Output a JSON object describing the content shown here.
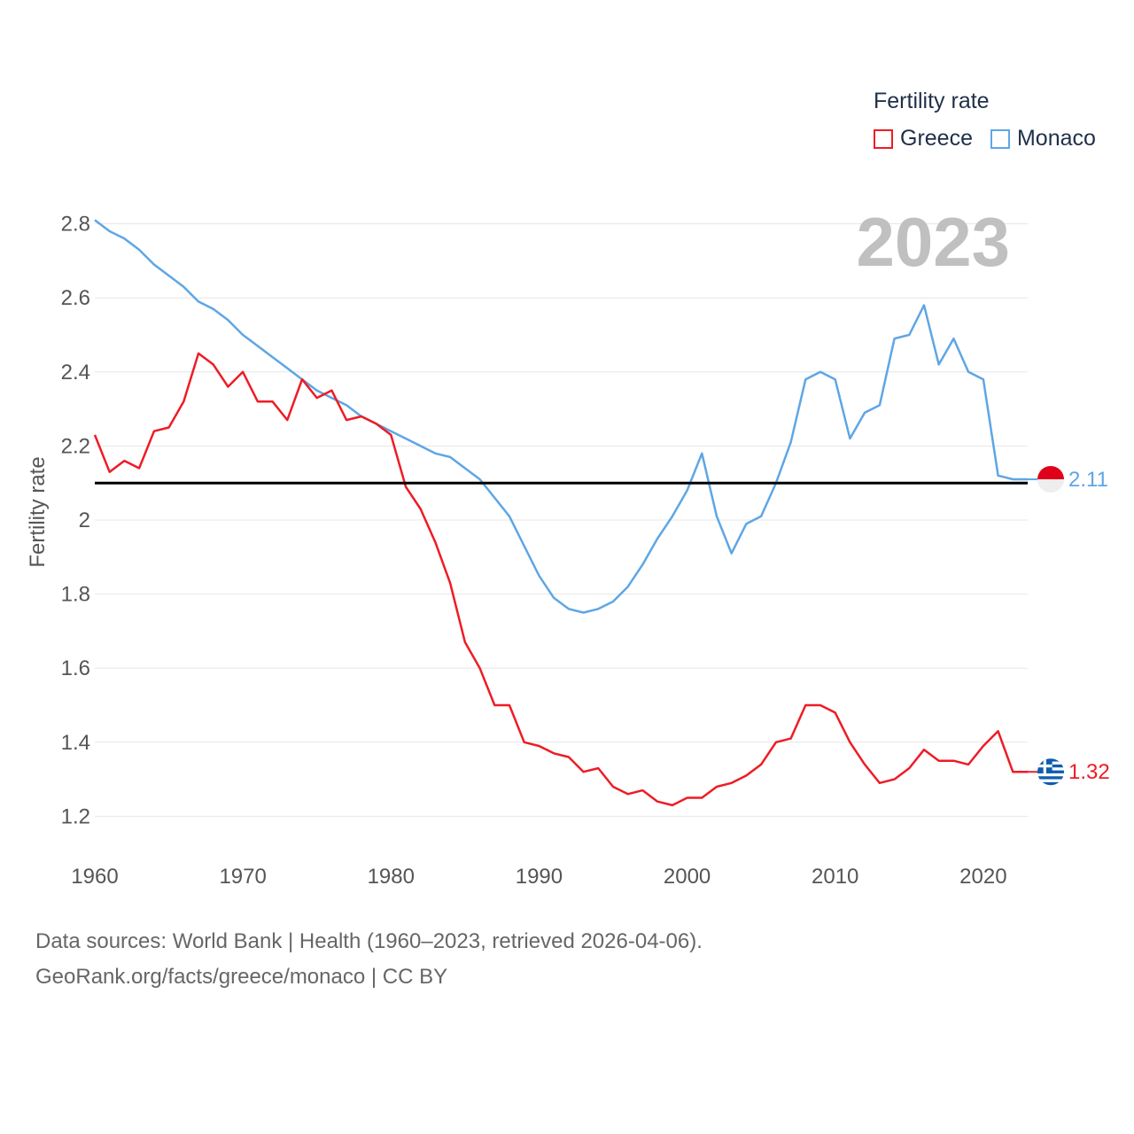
{
  "legend": {
    "title": "Fertility rate",
    "items": [
      {
        "label": "Greece",
        "color": "#ee1c25"
      },
      {
        "label": "Monaco",
        "color": "#5ea6e5"
      }
    ]
  },
  "footer": {
    "line1": "Data sources: World Bank | Health (1960–2023, retrieved 2026-04-06).",
    "line2": "GeoRank.org/facts/greece/monaco | CC BY"
  },
  "chart_data": {
    "type": "line",
    "title": "Fertility rate",
    "year_label": "2023",
    "xlabel": "",
    "ylabel": "Fertility rate",
    "xlim": [
      1960,
      2023
    ],
    "ylim": [
      1.1,
      2.85
    ],
    "x_ticks": [
      1960,
      1970,
      1980,
      1990,
      2000,
      2010,
      2020
    ],
    "y_ticks": [
      1.2,
      1.4,
      1.6,
      1.8,
      2,
      2.2,
      2.4,
      2.6,
      2.8
    ],
    "y_tick_labels": [
      "1.2",
      "1.4",
      "1.6",
      "1.8",
      "2",
      "2.2",
      "2.4",
      "2.6",
      "2.8"
    ],
    "reference_line": {
      "y": 2.1,
      "color": "#000000"
    },
    "x": [
      1960,
      1961,
      1962,
      1963,
      1964,
      1965,
      1966,
      1967,
      1968,
      1969,
      1970,
      1971,
      1972,
      1973,
      1974,
      1975,
      1976,
      1977,
      1978,
      1979,
      1980,
      1981,
      1982,
      1983,
      1984,
      1985,
      1986,
      1987,
      1988,
      1989,
      1990,
      1991,
      1992,
      1993,
      1994,
      1995,
      1996,
      1997,
      1998,
      1999,
      2000,
      2001,
      2002,
      2003,
      2004,
      2005,
      2006,
      2007,
      2008,
      2009,
      2010,
      2011,
      2012,
      2013,
      2014,
      2015,
      2016,
      2017,
      2018,
      2019,
      2020,
      2021,
      2022,
      2023
    ],
    "series": [
      {
        "name": "Greece",
        "color": "#ee1c25",
        "end_label": "1.32",
        "flag": "greece",
        "values": [
          2.23,
          2.13,
          2.16,
          2.14,
          2.24,
          2.25,
          2.32,
          2.45,
          2.42,
          2.36,
          2.4,
          2.32,
          2.32,
          2.27,
          2.38,
          2.33,
          2.35,
          2.27,
          2.28,
          2.26,
          2.23,
          2.09,
          2.03,
          1.94,
          1.83,
          1.67,
          1.6,
          1.5,
          1.5,
          1.4,
          1.39,
          1.37,
          1.36,
          1.32,
          1.33,
          1.28,
          1.26,
          1.27,
          1.24,
          1.23,
          1.25,
          1.25,
          1.28,
          1.29,
          1.31,
          1.34,
          1.4,
          1.41,
          1.5,
          1.5,
          1.48,
          1.4,
          1.34,
          1.29,
          1.3,
          1.33,
          1.38,
          1.35,
          1.35,
          1.34,
          1.39,
          1.43,
          1.32,
          1.32
        ]
      },
      {
        "name": "Monaco",
        "color": "#5ea6e5",
        "end_label": "2.11",
        "flag": "monaco",
        "values": [
          2.81,
          2.78,
          2.76,
          2.73,
          2.69,
          2.66,
          2.63,
          2.59,
          2.57,
          2.54,
          2.5,
          2.47,
          2.44,
          2.41,
          2.38,
          2.35,
          2.33,
          2.31,
          2.28,
          2.26,
          2.24,
          2.22,
          2.2,
          2.18,
          2.17,
          2.14,
          2.11,
          2.06,
          2.01,
          1.93,
          1.85,
          1.79,
          1.76,
          1.75,
          1.76,
          1.78,
          1.82,
          1.88,
          1.95,
          2.01,
          2.08,
          2.18,
          2.01,
          1.91,
          1.99,
          2.01,
          2.1,
          2.21,
          2.38,
          2.4,
          2.38,
          2.22,
          2.29,
          2.31,
          2.49,
          2.5,
          2.58,
          2.42,
          2.49,
          2.4,
          2.38,
          2.12,
          2.11,
          2.11
        ]
      }
    ]
  }
}
